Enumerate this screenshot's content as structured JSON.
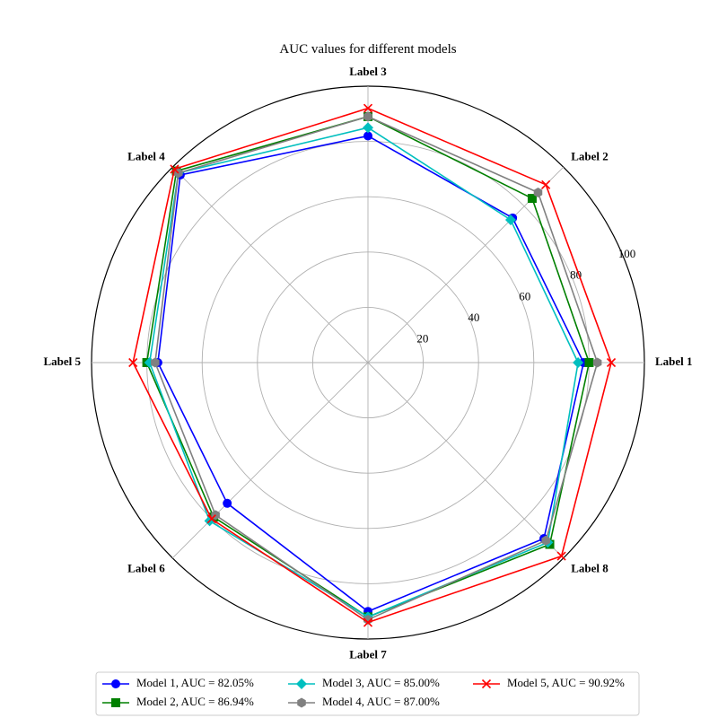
{
  "chart_data": {
    "type": "radar",
    "title": "AUC values for different models",
    "categories": [
      "Label 1",
      "Label 2",
      "Label 3",
      "Label 4",
      "Label 5",
      "Label 6",
      "Label 7",
      "Label 8"
    ],
    "rlim": [
      0,
      100
    ],
    "rticks": [
      20,
      40,
      60,
      80,
      100
    ],
    "rtick_labels": [
      "20",
      "40",
      "60",
      "80",
      "100"
    ],
    "grid": true,
    "legend_position": "bottom",
    "series": [
      {
        "name": "Model 1, AUC = 82.05%",
        "color": "#0000ff",
        "marker": "circle",
        "values": [
          78,
          74,
          82,
          96,
          76,
          72,
          90,
          90
        ]
      },
      {
        "name": "Model 2, AUC = 86.94%",
        "color": "#008000",
        "marker": "square",
        "values": [
          80,
          84,
          89,
          98,
          80,
          79,
          92,
          93
        ]
      },
      {
        "name": "Model 3, AUC = 85.00%",
        "color": "#00bfbf",
        "marker": "diamond",
        "values": [
          76,
          73,
          85,
          97,
          79,
          81,
          92,
          92
        ]
      },
      {
        "name": "Model 4, AUC = 87.00%",
        "color": "#808080",
        "marker": "hexagon",
        "values": [
          83,
          87,
          89,
          97,
          77,
          78,
          93,
          91
        ]
      },
      {
        "name": "Model 5, AUC = 90.92%",
        "color": "#ff0000",
        "marker": "x",
        "values": [
          88,
          91,
          92,
          99,
          85,
          80,
          94,
          99
        ]
      }
    ]
  }
}
